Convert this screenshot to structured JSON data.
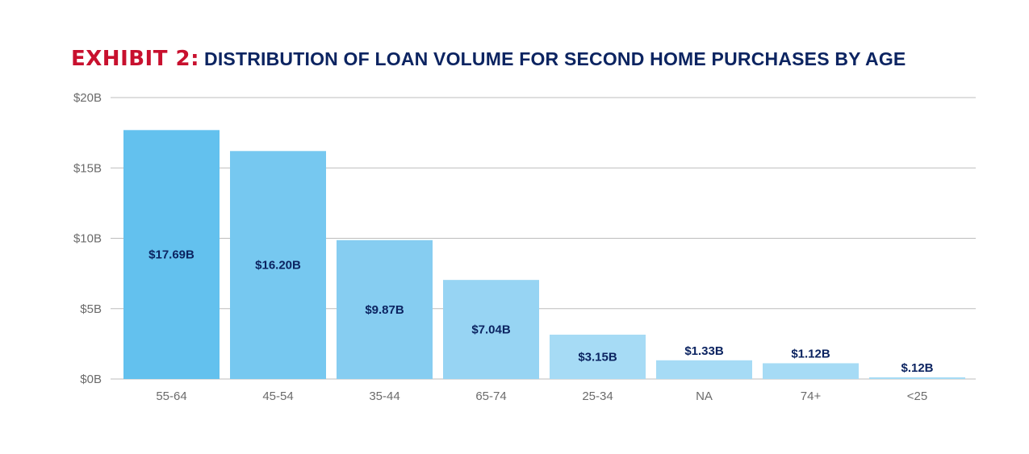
{
  "title": {
    "exhibit": "EXHIBIT 2:",
    "text": "DISTRIBUTION OF LOAN VOLUME FOR SECOND HOME PURCHASES BY AGE"
  },
  "colors": {
    "exhibit": "#c8102e",
    "title": "#0c2461",
    "value_label": "#0c2461",
    "gridline": "#bdbdbd",
    "tick_label": "#6b6b6b",
    "bars": [
      "#63c1ee",
      "#76c8f0",
      "#86cdf1",
      "#97d4f3",
      "#a6dbf5",
      "#a6dbf5",
      "#a6dbf5",
      "#a6dbf5"
    ]
  },
  "chart_data": {
    "type": "bar",
    "title": "DISTRIBUTION OF LOAN VOLUME FOR SECOND HOME PURCHASES BY AGE",
    "xlabel": "",
    "ylabel": "",
    "categories": [
      "55-64",
      "45-54",
      "35-44",
      "65-74",
      "25-34",
      "NA",
      "74+",
      "<25"
    ],
    "values": [
      17.69,
      16.2,
      9.87,
      7.04,
      3.15,
      1.33,
      1.12,
      0.12
    ],
    "value_labels": [
      "$17.69B",
      "$16.20B",
      "$9.87B",
      "$7.04B",
      "$3.15B",
      "$1.33B",
      "$1.12B",
      "$.12B"
    ],
    "ylim": [
      0,
      20
    ],
    "yticks": [
      0,
      5,
      10,
      15,
      20
    ],
    "ytick_labels": [
      "$0B",
      "$5B",
      "$10B",
      "$15B",
      "$20B"
    ],
    "grid": true,
    "legend": "none"
  }
}
